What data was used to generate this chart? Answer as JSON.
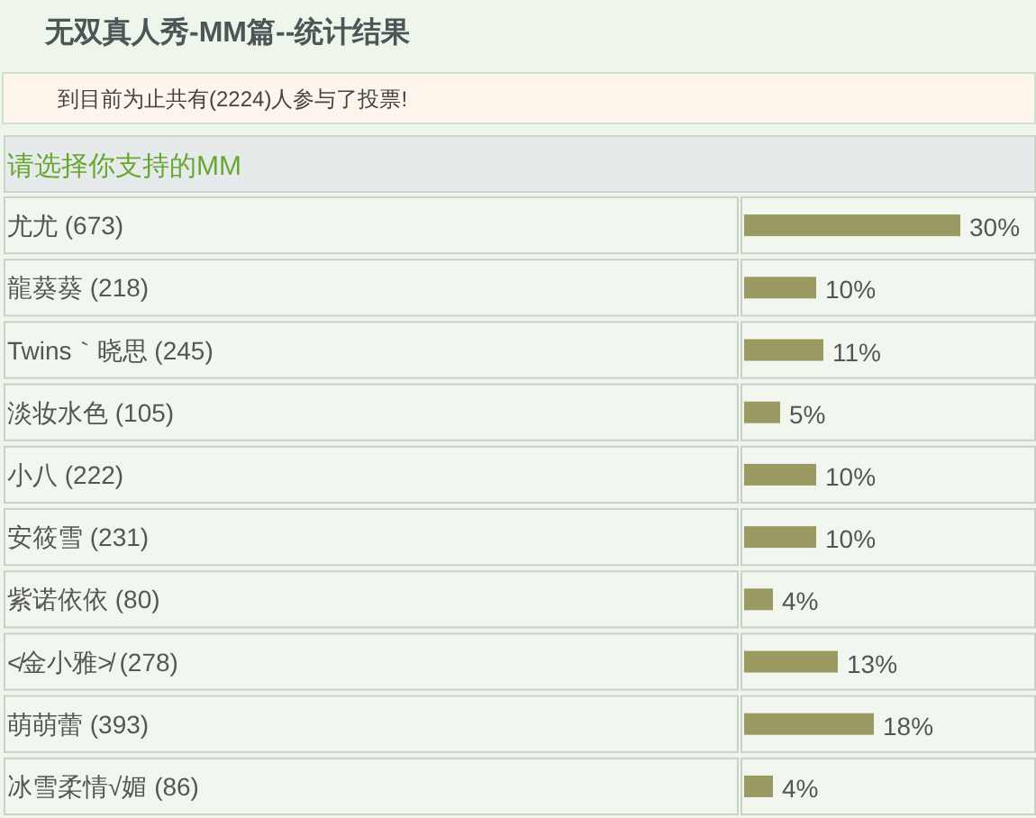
{
  "chart_data": {
    "type": "bar",
    "orientation": "horizontal",
    "title": "无双真人秀-MM篇--统计结果",
    "subtitle": "到目前为止共有(2224)人参与了投票!",
    "annotations": [
      "请选择你支持的MM"
    ],
    "categories": [
      "尤尤 (673)",
      "龍葵葵 (218)",
      "Twins｀晓思 (245)",
      "淡妆水色 (105)",
      "小八 (222)",
      "安筱雪 (231)",
      "紫诺依依 (80)",
      "≮金小雅≯ (278)",
      "萌萌蕾 (393)",
      "冰雪柔情√媚 (86)"
    ],
    "values": [
      30,
      10,
      11,
      5,
      10,
      10,
      4,
      13,
      18,
      4
    ],
    "value_labels": [
      "30%",
      "10%",
      "11%",
      "5%",
      "10%",
      "10%",
      "4%",
      "13%",
      "18%",
      "4%"
    ],
    "color": "#9b9a62",
    "xlim": [
      0,
      40
    ],
    "tick_labels": "y"
  }
}
